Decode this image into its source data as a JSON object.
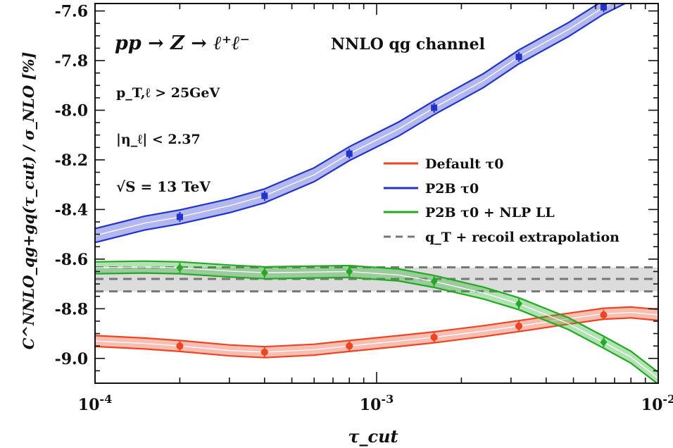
{
  "chart_data": {
    "type": "line",
    "x_scale": "log",
    "xlim": [
      0.0001,
      0.01
    ],
    "ylim": [
      -9.1,
      -7.57
    ],
    "grid": false,
    "legend_position": "center-right",
    "xlabel": "τ_cut",
    "ylabel": "C^NNLO_qg+gq(τ_cut) / σ_NLO [%]",
    "x_tick_labels": [
      "10^-4",
      "10^-3",
      "10^-2"
    ],
    "x_ticks": [
      0.0001,
      0.001,
      0.01
    ],
    "y_ticks": [
      -9.0,
      -8.8,
      -8.6,
      -8.4,
      -8.2,
      -8.0,
      -7.8,
      -7.6
    ],
    "y_tick_labels": [
      "-9.0",
      "-8.8",
      "-8.6",
      "-8.4",
      "-8.2",
      "-8.0",
      "-7.8",
      "-7.6"
    ],
    "annotations": {
      "process": "pp → Z → ℓ⁺ℓ⁻",
      "channel": "NNLO qg channel",
      "cut_pt": "p_T,ℓ > 25GeV",
      "cut_eta": "|η_ℓ| < 2.37",
      "energy": "√S = 13 TeV"
    },
    "series": [
      {
        "name": "Default τ0",
        "color": "#ee4422",
        "marker": "circle",
        "band_halfwidth": 0.022,
        "points_x": [
          0.0002,
          0.0004,
          0.0008,
          0.0016,
          0.0032,
          0.0064
        ],
        "points_y": [
          -8.95,
          -8.975,
          -8.95,
          -8.915,
          -8.87,
          -8.825
        ],
        "curve_x": [
          0.0001,
          0.00015,
          0.0002,
          0.0003,
          0.0004,
          0.0006,
          0.0008,
          0.0012,
          0.0016,
          0.0024,
          0.0032,
          0.0048,
          0.0064,
          0.008,
          0.01
        ],
        "curve_y": [
          -8.93,
          -8.94,
          -8.95,
          -8.968,
          -8.975,
          -8.965,
          -8.95,
          -8.93,
          -8.915,
          -8.89,
          -8.87,
          -8.84,
          -8.82,
          -8.815,
          -8.825
        ]
      },
      {
        "name": "P2B τ0",
        "color": "#2233cc",
        "marker": "square",
        "band_halfwidth": 0.028,
        "points_x": [
          0.0002,
          0.0004,
          0.0008,
          0.0016,
          0.0032,
          0.0064
        ],
        "points_y": [
          -8.43,
          -8.345,
          -8.175,
          -7.99,
          -7.785,
          -7.585
        ],
        "curve_x": [
          0.0001,
          0.00015,
          0.0002,
          0.0003,
          0.0004,
          0.0006,
          0.0008,
          0.0012,
          0.0016,
          0.0024,
          0.0032,
          0.0048,
          0.0064,
          0.008,
          0.01
        ],
        "curve_y": [
          -8.505,
          -8.455,
          -8.43,
          -8.385,
          -8.345,
          -8.26,
          -8.175,
          -8.075,
          -7.99,
          -7.88,
          -7.785,
          -7.675,
          -7.585,
          -7.53,
          -7.47
        ]
      },
      {
        "name": "P2B τ0 + NLP LL",
        "color": "#22aa22",
        "marker": "diamond",
        "band_halfwidth": 0.024,
        "points_x": [
          0.0002,
          0.0004,
          0.0008,
          0.0016,
          0.0032,
          0.0064
        ],
        "points_y": [
          -8.635,
          -8.655,
          -8.65,
          -8.69,
          -8.78,
          -8.935
        ],
        "curve_x": [
          0.0001,
          0.00015,
          0.0002,
          0.0003,
          0.0004,
          0.0006,
          0.0008,
          0.0012,
          0.0016,
          0.0024,
          0.0032,
          0.0048,
          0.0064,
          0.008,
          0.01
        ],
        "curve_y": [
          -8.635,
          -8.632,
          -8.635,
          -8.648,
          -8.655,
          -8.652,
          -8.65,
          -8.664,
          -8.69,
          -8.737,
          -8.78,
          -8.86,
          -8.935,
          -8.995,
          -9.08
        ]
      }
    ],
    "reference_band": {
      "name": "q_T + recoil extrapolation",
      "color": "#777777",
      "central": -8.68,
      "lower": -8.73,
      "upper": -8.633
    }
  }
}
